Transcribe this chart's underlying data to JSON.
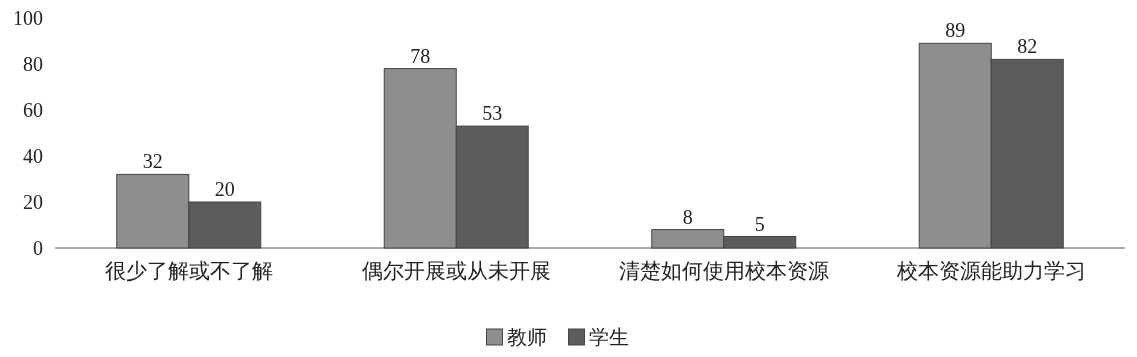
{
  "chart_data": {
    "type": "bar",
    "categories": [
      "很少了解或不了解",
      "偶尔开展或从未开展",
      "清楚如何使用校本资源",
      "校本资源能助力学习"
    ],
    "series": [
      {
        "name": "教师",
        "color": "#8e8e8e",
        "values": [
          32,
          78,
          8,
          89
        ]
      },
      {
        "name": "学生",
        "color": "#5c5c5c",
        "values": [
          20,
          53,
          5,
          82
        ]
      }
    ],
    "ylim": [
      0,
      100
    ],
    "yticks": [
      0,
      20,
      40,
      60,
      80,
      100
    ],
    "data_labels": true,
    "legend": "bottom"
  }
}
